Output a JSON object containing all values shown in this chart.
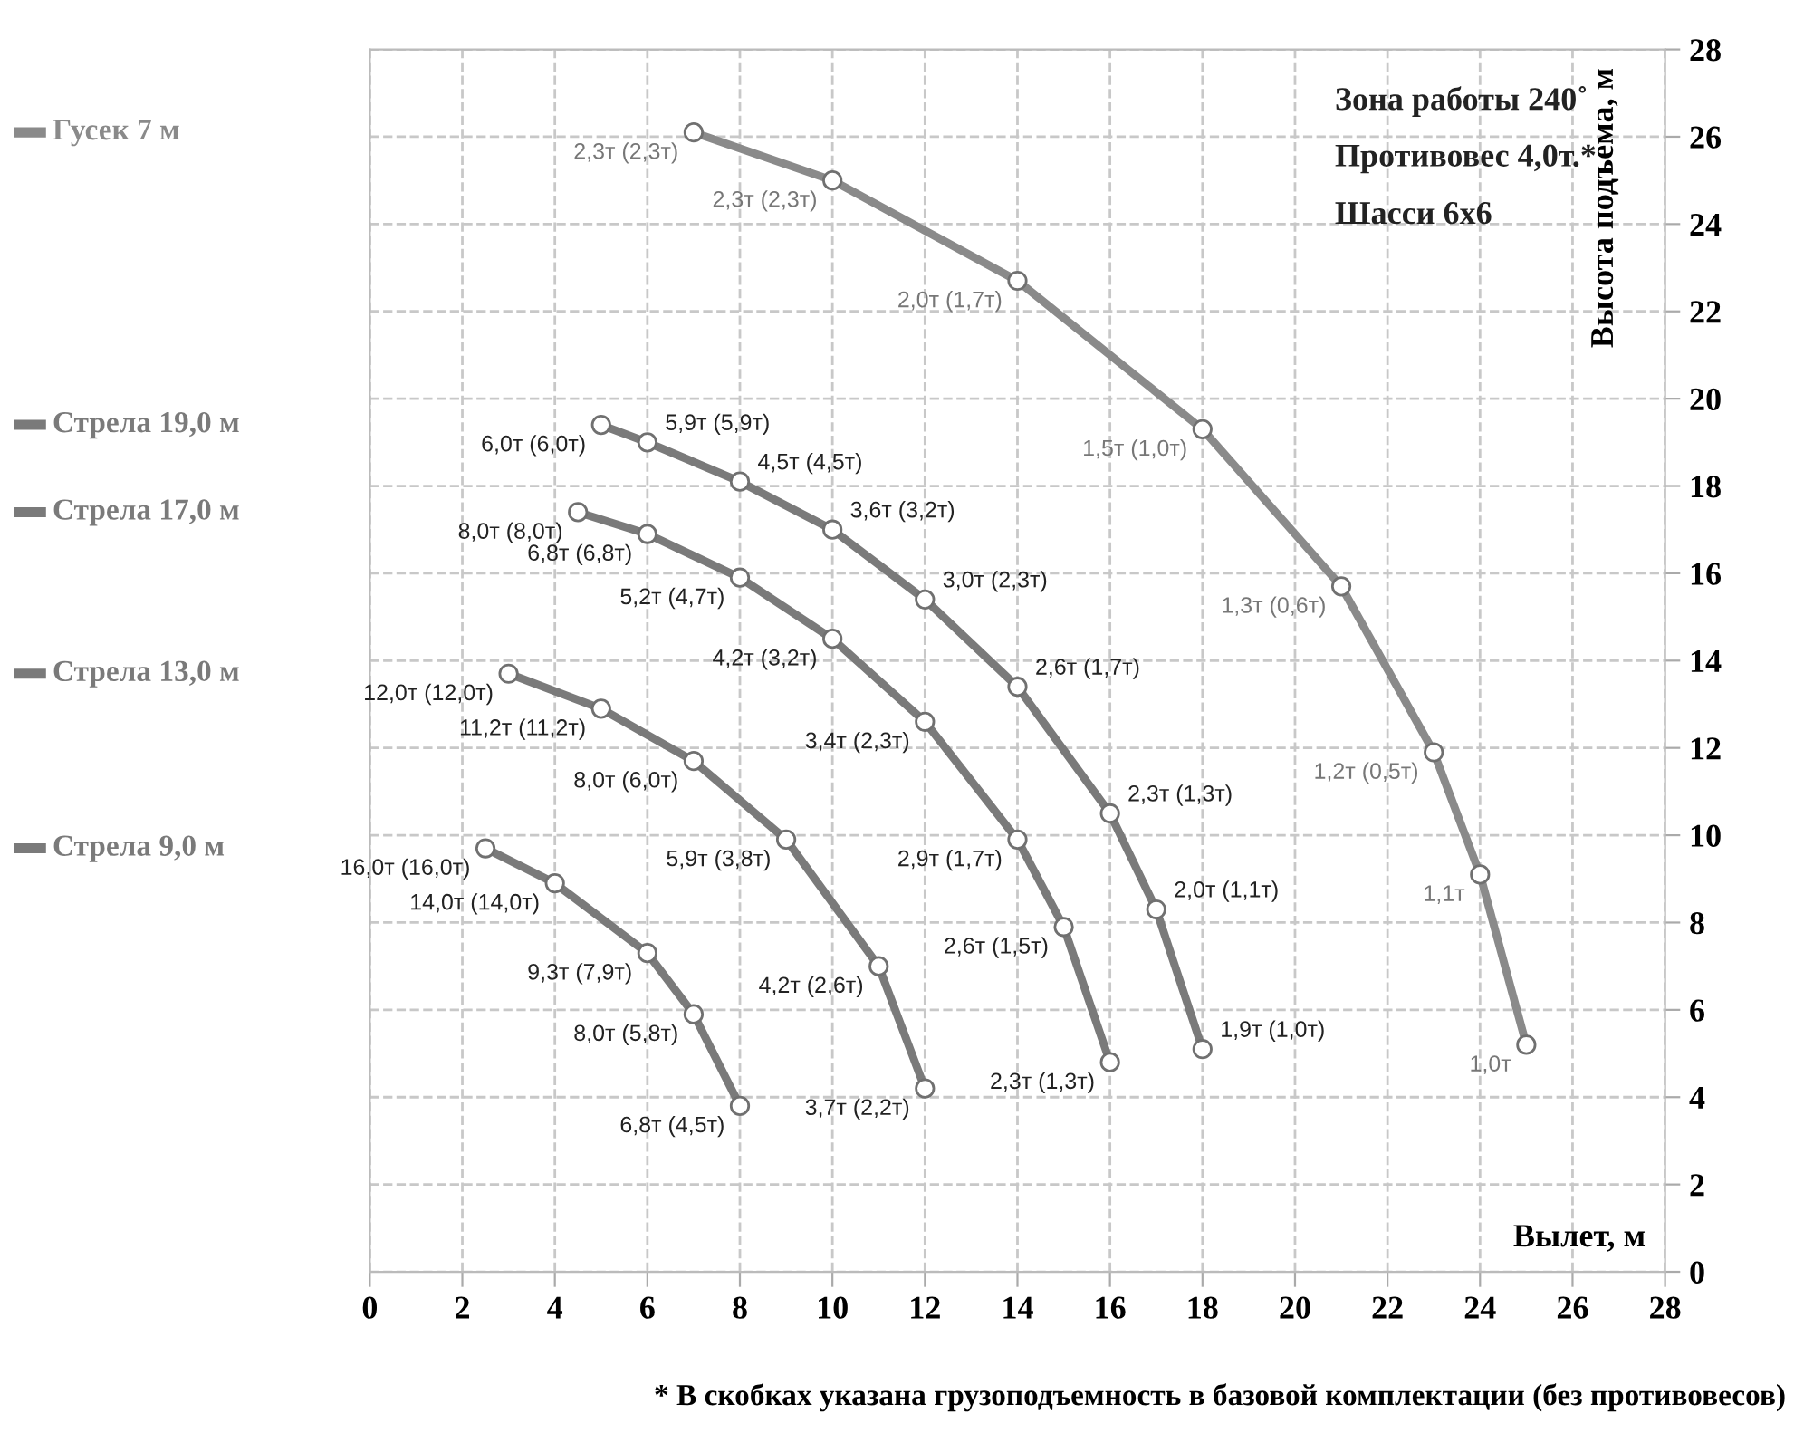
{
  "chart_data": {
    "type": "line",
    "xlabel": "Вылет, м",
    "ylabel": "Высота подъема, м",
    "xlim": [
      0,
      28
    ],
    "ylim": [
      0,
      28
    ],
    "xticks": [
      0,
      2,
      4,
      6,
      8,
      10,
      12,
      14,
      16,
      18,
      20,
      22,
      24,
      26,
      28
    ],
    "yticks": [
      0,
      2,
      4,
      6,
      8,
      10,
      12,
      14,
      16,
      18,
      20,
      22,
      24,
      26,
      28
    ],
    "grid": true,
    "marker": "circle",
    "line_style": "solid",
    "legend": "left",
    "series": [
      {
        "name": "Гусек 7 м",
        "color": "#8a8a8a",
        "x": [
          7,
          10,
          14,
          18,
          21,
          23,
          24,
          25
        ],
        "values": [
          26.1,
          25.0,
          22.7,
          19.3,
          15.7,
          11.9,
          9.1,
          5.2
        ]
      },
      {
        "name": "Стрела 19,0 м",
        "color": "#7a7a7a",
        "x": [
          5,
          6,
          8,
          10,
          12,
          14,
          16,
          17,
          18
        ],
        "values": [
          19.4,
          19.0,
          18.1,
          17.0,
          15.4,
          13.4,
          10.5,
          8.3,
          5.1
        ]
      },
      {
        "name": "Стрела 17,0 м",
        "color": "#7a7a7a",
        "x": [
          4.5,
          6,
          8,
          10,
          12,
          14,
          15,
          16
        ],
        "values": [
          17.4,
          16.9,
          15.9,
          14.5,
          12.6,
          9.9,
          7.9,
          4.8
        ]
      },
      {
        "name": "Стрела 13,0 м",
        "color": "#7a7a7a",
        "x": [
          3,
          5,
          7,
          9,
          11,
          12
        ],
        "values": [
          13.7,
          12.9,
          11.7,
          9.9,
          7.0,
          4.2
        ]
      },
      {
        "name": "Стрела 9,0 м",
        "color": "#7a7a7a",
        "x": [
          2.5,
          4,
          6,
          7,
          8
        ],
        "values": [
          9.7,
          8.9,
          7.3,
          5.9,
          3.8
        ]
      }
    ],
    "annotations": [
      "Зона работы 240˚",
      "Противовес 4,0т.*",
      "Шасси 6х6",
      {
        "text": "2,3т (2,3т)",
        "x": 7,
        "y": 26.1
      },
      {
        "text": "2,3т (2,3т)",
        "x": 10,
        "y": 25.0
      },
      {
        "text": "2,0т (1,7т)",
        "x": 14,
        "y": 22.7
      },
      {
        "text": "1,5т (1,0т)",
        "x": 18,
        "y": 19.3
      },
      {
        "text": "1,3т (0,6т)",
        "x": 21,
        "y": 15.7
      },
      {
        "text": "1,2т (0,5т)",
        "x": 23,
        "y": 11.9
      },
      {
        "text": "1,1т",
        "x": 24,
        "y": 9.1
      },
      {
        "text": "1,0т",
        "x": 25,
        "y": 5.2
      },
      {
        "text": "6,0т (6,0т)",
        "x": 5,
        "y": 19.4
      },
      {
        "text": "5,9т (5,9т)",
        "x": 6,
        "y": 19.0
      },
      {
        "text": "4,5т (4,5т)",
        "x": 8,
        "y": 18.1
      },
      {
        "text": "3,6т (3,2т)",
        "x": 10,
        "y": 17.0
      },
      {
        "text": "3,0т (2,3т)",
        "x": 12,
        "y": 15.4
      },
      {
        "text": "2,6т (1,7т)",
        "x": 14,
        "y": 13.4
      },
      {
        "text": "2,3т (1,3т)",
        "x": 16,
        "y": 10.5
      },
      {
        "text": "2,0т (1,1т)",
        "x": 17,
        "y": 8.3
      },
      {
        "text": "1,9т (1,0т)",
        "x": 18,
        "y": 5.1
      },
      {
        "text": "8,0т (8,0т)",
        "x": 4.5,
        "y": 17.4
      },
      {
        "text": "6,8т (6,8т)",
        "x": 6,
        "y": 16.9
      },
      {
        "text": "5,2т (4,7т)",
        "x": 8,
        "y": 15.9
      },
      {
        "text": "4,2т (3,2т)",
        "x": 10,
        "y": 14.5
      },
      {
        "text": "3,4т (2,3т)",
        "x": 12,
        "y": 12.6
      },
      {
        "text": "2,9т (1,7т)",
        "x": 14,
        "y": 9.9
      },
      {
        "text": "2,6т (1,5т)",
        "x": 15,
        "y": 7.9
      },
      {
        "text": "2,3т (1,3т)",
        "x": 16,
        "y": 4.8
      },
      {
        "text": "12,0т (12,0т)",
        "x": 3,
        "y": 13.7
      },
      {
        "text": "11,2т (11,2т)",
        "x": 5,
        "y": 12.9
      },
      {
        "text": "8,0т (6,0т)",
        "x": 7,
        "y": 11.7
      },
      {
        "text": "5,9т (3,8т)",
        "x": 9,
        "y": 9.9
      },
      {
        "text": "4,2т (2,6т)",
        "x": 11,
        "y": 7.0
      },
      {
        "text": "3,7т (2,2т)",
        "x": 12,
        "y": 4.2
      },
      {
        "text": "16,0т (16,0т)",
        "x": 2.5,
        "y": 9.7
      },
      {
        "text": "14,0т (14,0т)",
        "x": 4,
        "y": 8.9
      },
      {
        "text": "9,3т (7,9т)",
        "x": 6,
        "y": 7.3
      },
      {
        "text": "8,0т (5,8т)",
        "x": 7,
        "y": 5.9
      },
      {
        "text": "6,8т (4,5т)",
        "x": 8,
        "y": 3.8
      },
      "* В скобках указана грузоподъемность в базовой комплектации (без противовесов)"
    ]
  }
}
